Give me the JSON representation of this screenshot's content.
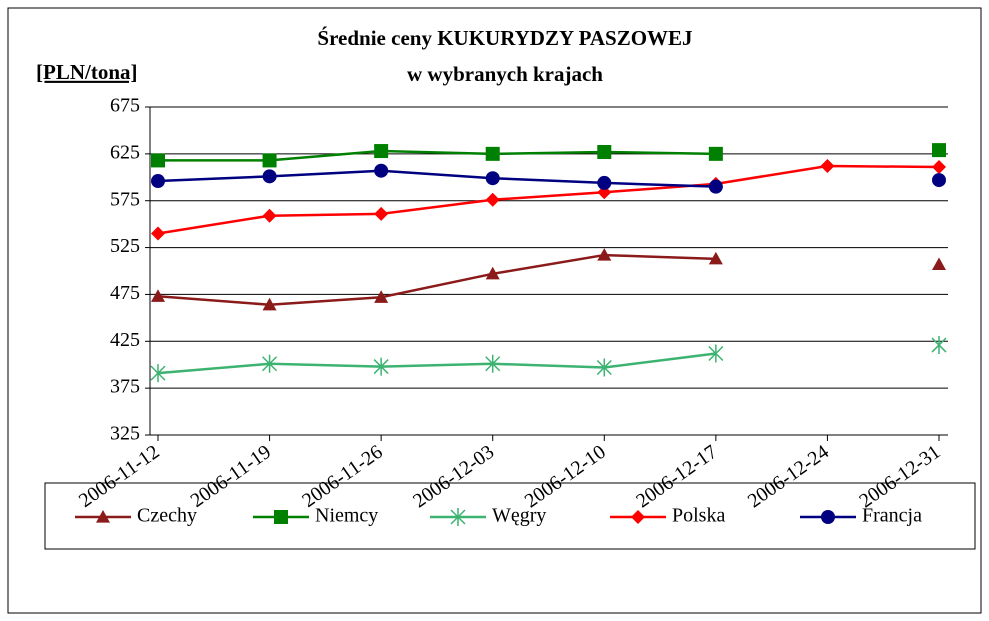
{
  "chart_data": {
    "type": "line",
    "title": "Średnie ceny KUKURYDZY PASZOWEJ",
    "subtitle": "w wybranych krajach",
    "y_label": "[PLN/tona]",
    "categories": [
      "2006-11-12",
      "2006-11-19",
      "2006-11-26",
      "2006-12-03",
      "2006-12-10",
      "2006-12-17",
      "2006-12-24",
      "2006-12-31"
    ],
    "series": [
      {
        "name": "Czechy",
        "color": "#8b1a1a",
        "marker": "triangle",
        "values": [
          473,
          464,
          472,
          497,
          517,
          513,
          null,
          507
        ]
      },
      {
        "name": "Niemcy",
        "color": "#008000",
        "marker": "square",
        "values": [
          618,
          618,
          628,
          625,
          627,
          625,
          null,
          629
        ]
      },
      {
        "name": "Węgry",
        "color": "#3cb371",
        "marker": "star",
        "values": [
          391,
          401,
          398,
          401,
          397,
          412,
          null,
          421
        ]
      },
      {
        "name": "Polska",
        "color": "#ff0000",
        "marker": "diamond",
        "values": [
          540,
          559,
          561,
          576,
          584,
          593,
          612,
          611
        ]
      },
      {
        "name": "Francja",
        "color": "#000080",
        "marker": "circle",
        "values": [
          596,
          601,
          607,
          599,
          594,
          590,
          null,
          597
        ]
      }
    ],
    "ylim": [
      325,
      675
    ],
    "yticks": [
      325,
      375,
      425,
      475,
      525,
      575,
      625,
      675
    ],
    "grid": true,
    "legend": "bottom"
  }
}
